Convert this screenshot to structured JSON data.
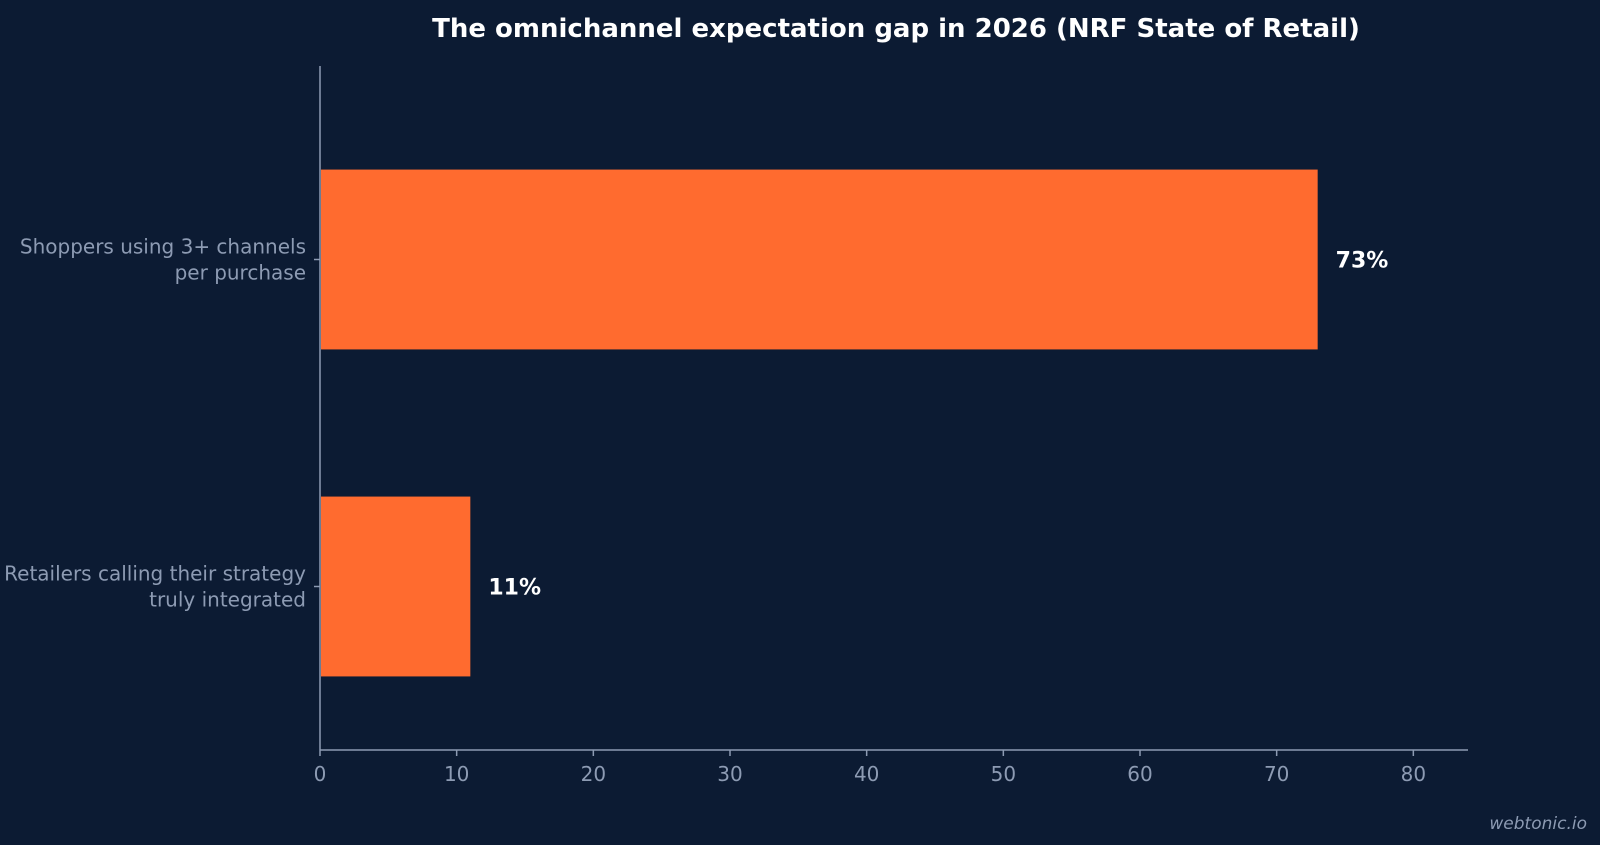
{
  "chart_data": {
    "type": "bar",
    "orientation": "horizontal",
    "title": "The omnichannel expectation gap in 2026 (NRF State of Retail)",
    "xlabel": "",
    "ylabel": "",
    "categories": [
      [
        "Shoppers using 3+ channels",
        "per purchase"
      ],
      [
        "Retailers calling their strategy",
        "truly integrated"
      ]
    ],
    "values": [
      73,
      11
    ],
    "data_labels": [
      "73%",
      "11%"
    ],
    "xlim": [
      0,
      84
    ],
    "xticks": [
      0,
      10,
      20,
      30,
      40,
      50,
      60,
      70,
      80
    ],
    "grid": false,
    "legend": "none",
    "colors": {
      "background": "#0c1b33",
      "bar": "#ff6b2f",
      "axis": "#8d9bb3",
      "title": "#ffffff",
      "data_label": "#ffffff"
    }
  },
  "watermark": "webtonic.io"
}
